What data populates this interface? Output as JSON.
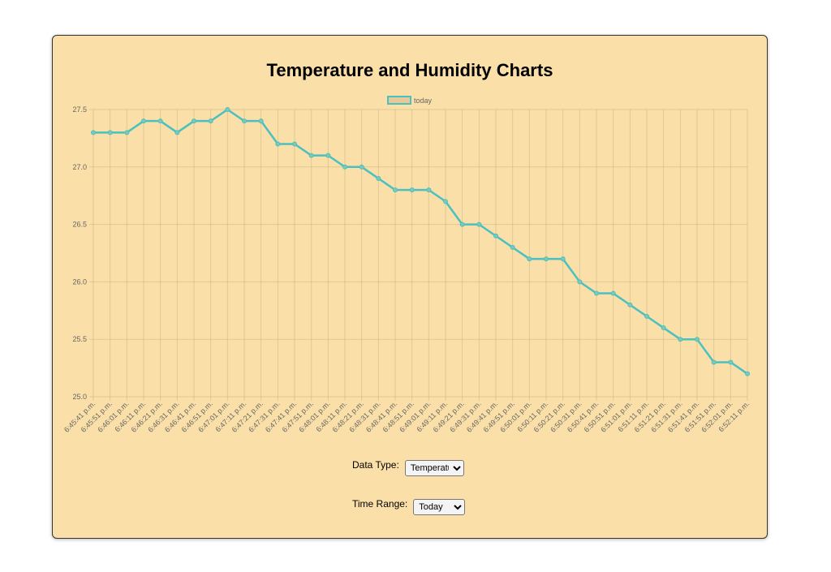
{
  "title": "Temperature and Humidity Charts",
  "controls": {
    "data_type_label": "Data Type:",
    "data_type_value": "Temperature",
    "time_range_label": "Time Range:",
    "time_range_value": "Today"
  },
  "chart_data": {
    "type": "line",
    "title": "Temperature and Humidity Charts",
    "legend": {
      "position": "top",
      "entries": [
        "today"
      ]
    },
    "colors": {
      "line": "#4bc0c0",
      "legend_fill": "#e8c99a"
    },
    "grid": true,
    "ylim": [
      25.0,
      27.5
    ],
    "yticks": [
      "25.0",
      "25.5",
      "26.0",
      "26.5",
      "27.0",
      "27.5"
    ],
    "categories": [
      "6:45:41 p.m.",
      "6:45:51 p.m.",
      "6:46:01 p.m.",
      "6:46:11 p.m.",
      "6:46:21 p.m.",
      "6:46:31 p.m.",
      "6:46:41 p.m.",
      "6:46:51 p.m.",
      "6:47:01 p.m.",
      "6:47:11 p.m.",
      "6:47:21 p.m.",
      "6:47:31 p.m.",
      "6:47:41 p.m.",
      "6:47:51 p.m.",
      "6:48:01 p.m.",
      "6:48:11 p.m.",
      "6:48:21 p.m.",
      "6:48:31 p.m.",
      "6:48:41 p.m.",
      "6:48:51 p.m.",
      "6:49:01 p.m.",
      "6:49:11 p.m.",
      "6:49:21 p.m.",
      "6:49:31 p.m.",
      "6:49:41 p.m.",
      "6:49:51 p.m.",
      "6:50:01 p.m.",
      "6:50:11 p.m.",
      "6:50:21 p.m.",
      "6:50:31 p.m.",
      "6:50:41 p.m.",
      "6:50:51 p.m.",
      "6:51:01 p.m.",
      "6:51:11 p.m.",
      "6:51:21 p.m.",
      "6:51:31 p.m.",
      "6:51:41 p.m.",
      "6:51:51 p.m.",
      "6:52:01 p.m.",
      "6:52:11 p.m."
    ],
    "series": [
      {
        "name": "today",
        "values": [
          27.3,
          27.3,
          27.3,
          27.4,
          27.4,
          27.3,
          27.4,
          27.4,
          27.5,
          27.4,
          27.4,
          27.2,
          27.2,
          27.1,
          27.1,
          27.0,
          27.0,
          26.9,
          26.8,
          26.8,
          26.8,
          26.7,
          26.5,
          26.5,
          26.4,
          26.3,
          26.2,
          26.2,
          26.2,
          26.0,
          25.9,
          25.9,
          25.8,
          25.7,
          25.6,
          25.5,
          25.5,
          25.3,
          25.3,
          25.2
        ]
      }
    ]
  }
}
